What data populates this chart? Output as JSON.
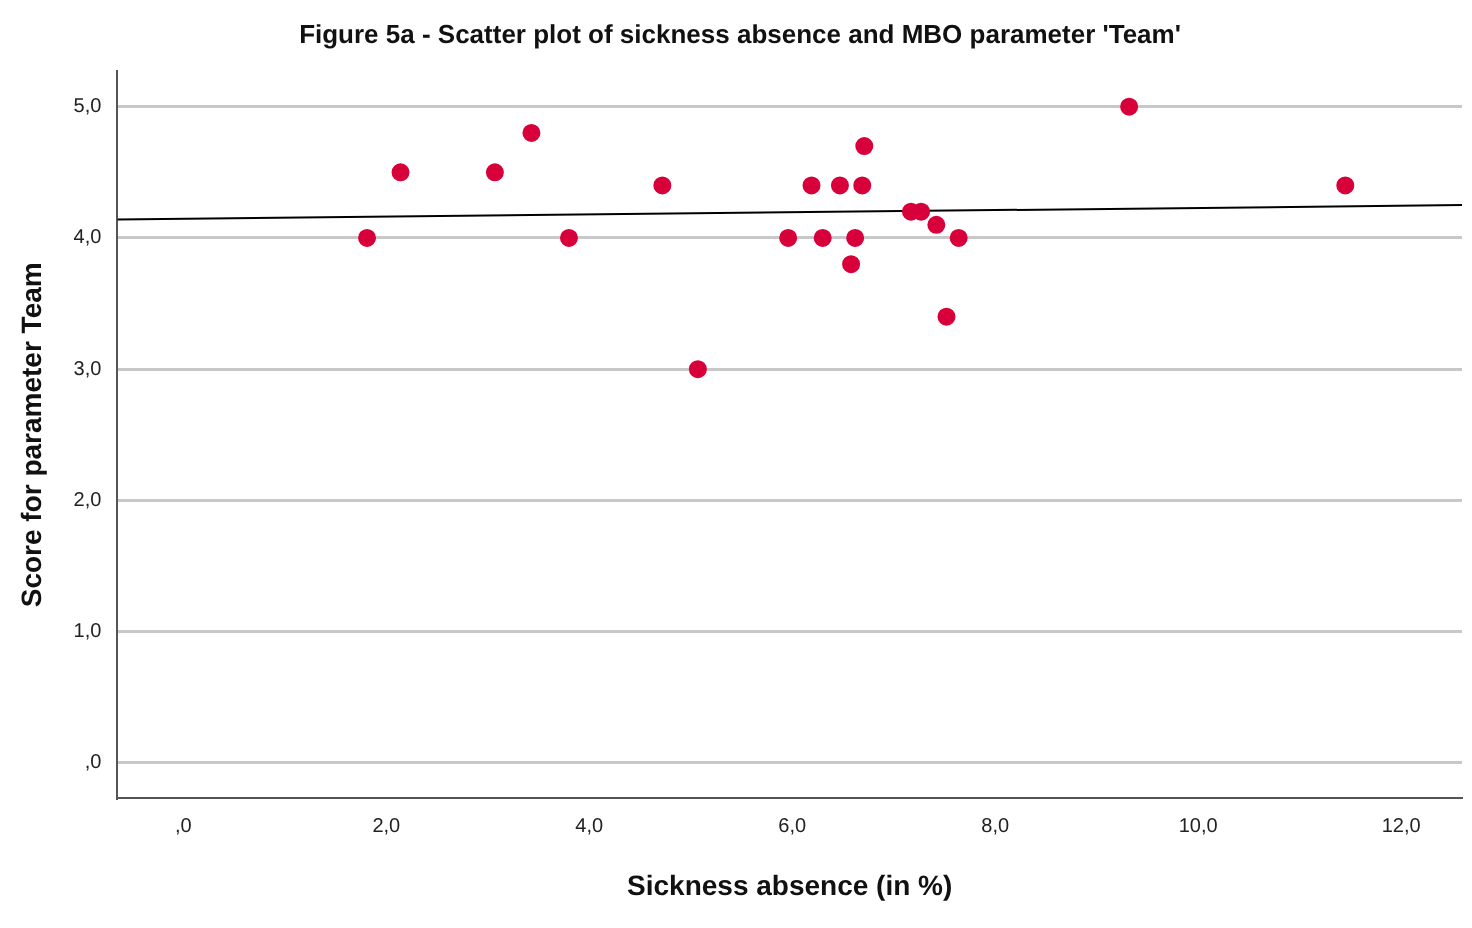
{
  "chart_data": {
    "type": "scatter",
    "title": "Figure 5a - Scatter plot of sickness absence and MBO parameter 'Team'",
    "xlabel": "Sickness absence (in %)",
    "ylabel": "Score for parameter Team",
    "series": [
      {
        "color": "#d8003a",
        "x": [
          1.81,
          2.14,
          3.07,
          3.43,
          3.8,
          4.72,
          5.07,
          5.96,
          6.19,
          6.3,
          6.47,
          6.62,
          6.58,
          6.69,
          6.71,
          7.17,
          7.27,
          7.42,
          7.64,
          7.52,
          9.32,
          11.45
        ],
        "values": [
          4.0,
          4.5,
          4.5,
          4.8,
          4.0,
          4.4,
          3.0,
          4.0,
          4.4,
          4.0,
          4.4,
          4.0,
          3.8,
          4.4,
          4.7,
          4.2,
          4.2,
          4.1,
          4.0,
          3.4,
          5.0,
          4.4
        ]
      },
      {
        "type": "line",
        "marker": "none",
        "color": "#000000",
        "x": [
          -0.65,
          12.6
        ],
        "values": [
          4.14,
          4.25
        ]
      }
    ],
    "xlim": [
      -0.65,
      12.6
    ],
    "ylim": [
      -0.27,
      5.27
    ],
    "xticks": [
      {
        "value": 0,
        "label": ",0"
      },
      {
        "value": 2,
        "label": "2,0"
      },
      {
        "value": 4,
        "label": "4,0"
      },
      {
        "value": 6,
        "label": "6,0"
      },
      {
        "value": 8,
        "label": "8,0"
      },
      {
        "value": 10,
        "label": "10,0"
      },
      {
        "value": 12,
        "label": "12,0"
      }
    ],
    "yticks": [
      {
        "value": 0,
        "label": ",0"
      },
      {
        "value": 1,
        "label": "1,0"
      },
      {
        "value": 2,
        "label": "2,0"
      },
      {
        "value": 3,
        "label": "3,0"
      },
      {
        "value": 4,
        "label": "4,0"
      },
      {
        "value": 5,
        "label": "5,0"
      }
    ],
    "grid": "y",
    "marker": "circle"
  }
}
